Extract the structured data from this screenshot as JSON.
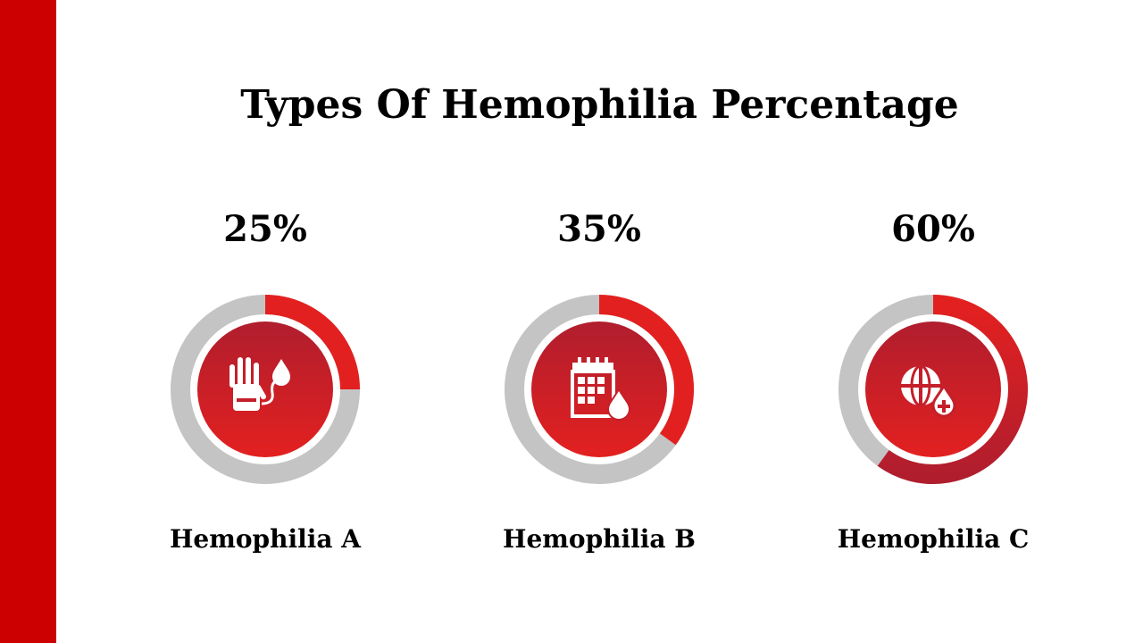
{
  "title": "Types Of Hemophilia Percentage",
  "colors": {
    "accent": "#cc0000",
    "ring_fill": "#e32020",
    "ring_fill_dark": "#b01e2e",
    "ring_track": "#c4c4c4",
    "icon": "#ffffff"
  },
  "chart_data": [
    {
      "type": "pie",
      "variant": "donut",
      "title": "Hemophilia A",
      "value_label": "25%",
      "values": [
        25,
        75
      ],
      "icon": "hand-blood-drop-icon"
    },
    {
      "type": "pie",
      "variant": "donut",
      "title": "Hemophilia B",
      "value_label": "35%",
      "values": [
        35,
        65
      ],
      "icon": "calendar-blood-drop-icon"
    },
    {
      "type": "pie",
      "variant": "donut",
      "title": "Hemophilia C",
      "value_label": "60%",
      "values": [
        60,
        40
      ],
      "icon": "globe-medical-drop-icon"
    }
  ]
}
